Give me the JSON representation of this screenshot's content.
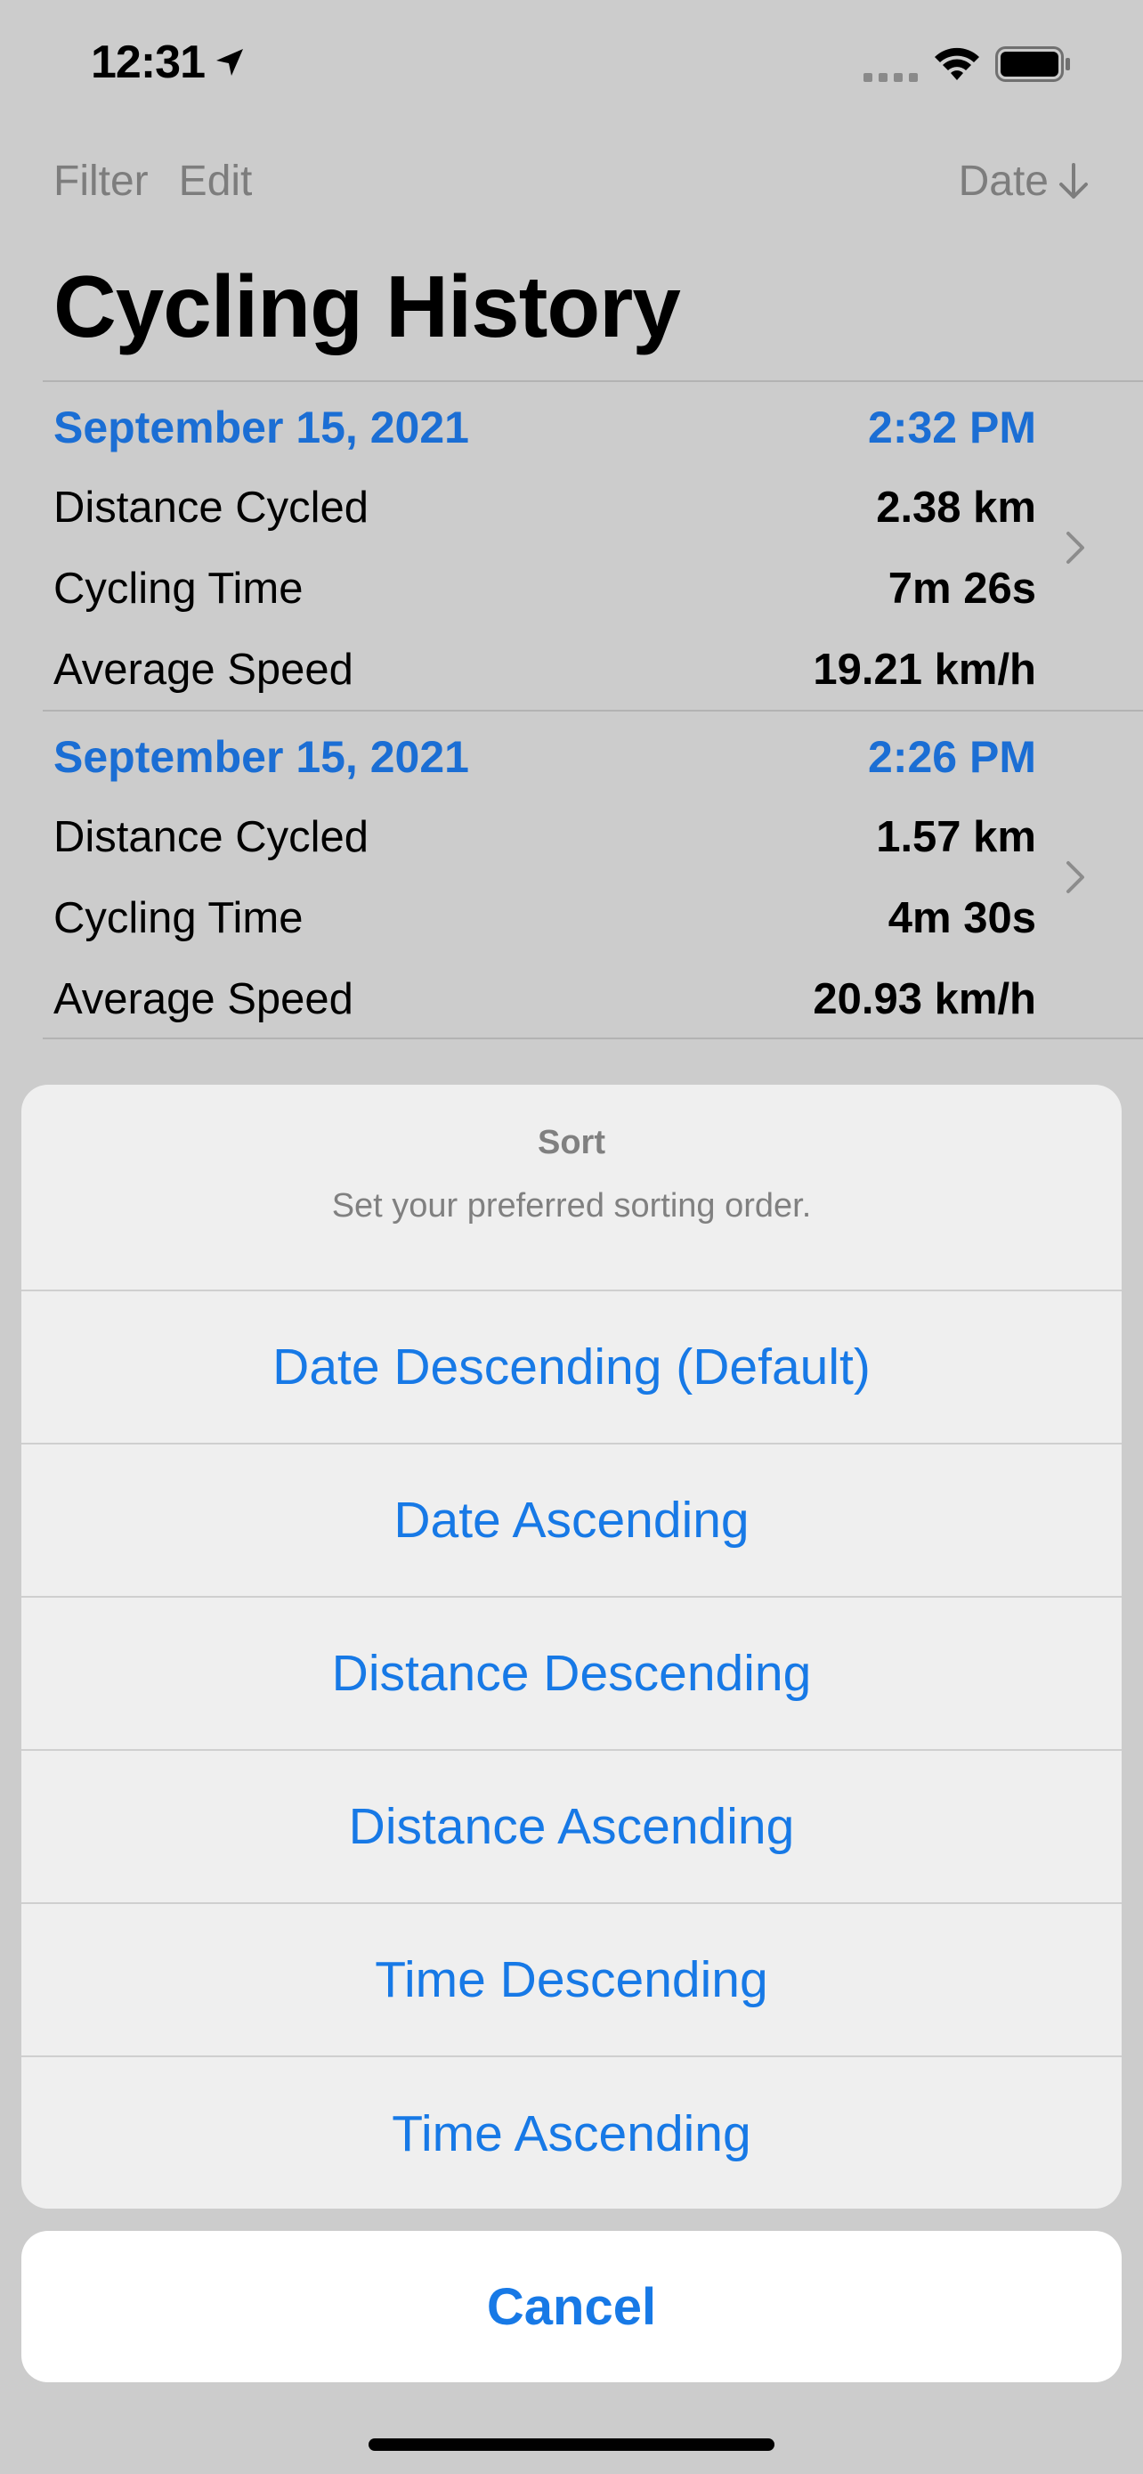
{
  "status_bar": {
    "time": "12:31",
    "icons": [
      "location-arrow-icon",
      "cellular-signal-icon",
      "wifi-icon",
      "battery-icon"
    ]
  },
  "nav": {
    "filter_label": "Filter",
    "edit_label": "Edit",
    "sort_label": "Date",
    "sort_icon": "arrow-down-icon"
  },
  "title": "Cycling History",
  "rides": [
    {
      "date": "September 15, 2021",
      "time": "2:32 PM",
      "rows": [
        {
          "label": "Distance Cycled",
          "value": "2.38 km"
        },
        {
          "label": "Cycling Time",
          "value": "7m 26s"
        },
        {
          "label": "Average Speed",
          "value": "19.21 km/h"
        }
      ]
    },
    {
      "date": "September 15, 2021",
      "time": "2:26 PM",
      "rows": [
        {
          "label": "Distance Cycled",
          "value": "1.57 km"
        },
        {
          "label": "Cycling Time",
          "value": "4m 30s"
        },
        {
          "label": "Average Speed",
          "value": "20.93 km/h"
        }
      ]
    }
  ],
  "sheet": {
    "title": "Sort",
    "message": "Set your preferred sorting order.",
    "options": [
      "Date Descending (Default)",
      "Date Ascending",
      "Distance Descending",
      "Distance Ascending",
      "Time Descending",
      "Time Ascending"
    ],
    "cancel_label": "Cancel"
  },
  "colors": {
    "accent": "#1779e6",
    "date_header": "#1b6ed4",
    "dimmed_background": "#cccccc",
    "sheet_background": "#efefef"
  }
}
